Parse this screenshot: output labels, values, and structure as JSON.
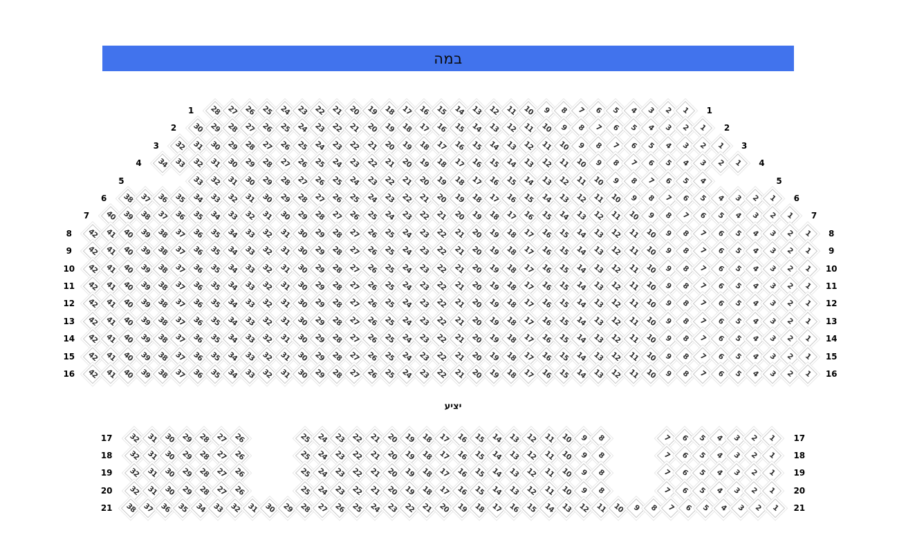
{
  "stage": {
    "label": "במה",
    "color": "#4173ed",
    "text_color": "#0a0a0a"
  },
  "balcony": {
    "label": "יציע"
  },
  "seat_style": {
    "fill": "#ffffff",
    "border_color": "#c7c7c7",
    "outer_ring_color": "#e8e8e8",
    "number_color": "#2e2e2e"
  },
  "sections": [
    {
      "name": "main-hall",
      "rows": [
        {
          "row": "1",
          "blocks": [
            [
              28,
              1
            ]
          ],
          "label_span": 28
        },
        {
          "row": "2",
          "blocks": [
            [
              30,
              1
            ]
          ],
          "label_span": 30
        },
        {
          "row": "3",
          "blocks": [
            [
              32,
              1
            ]
          ],
          "label_span": 32
        },
        {
          "row": "4",
          "blocks": [
            [
              34,
              1
            ]
          ],
          "label_span": 34
        },
        {
          "row": "5",
          "blocks": [
            [
              33,
              4
            ]
          ],
          "label_span": 36
        },
        {
          "row": "6",
          "blocks": [
            [
              38,
              1
            ]
          ],
          "label_span": 38
        },
        {
          "row": "7",
          "blocks": [
            [
              40,
              1
            ]
          ],
          "label_span": 40
        },
        {
          "row": "8",
          "blocks": [
            [
              42,
              1
            ]
          ],
          "label_span": 42
        },
        {
          "row": "9",
          "blocks": [
            [
              42,
              1
            ]
          ],
          "label_span": 42
        },
        {
          "row": "10",
          "blocks": [
            [
              42,
              1
            ]
          ],
          "label_span": 42
        },
        {
          "row": "11",
          "blocks": [
            [
              42,
              1
            ]
          ],
          "label_span": 42
        },
        {
          "row": "12",
          "blocks": [
            [
              42,
              1
            ]
          ],
          "label_span": 42
        },
        {
          "row": "13",
          "blocks": [
            [
              42,
              1
            ]
          ],
          "label_span": 42
        },
        {
          "row": "14",
          "blocks": [
            [
              42,
              1
            ]
          ],
          "label_span": 42
        },
        {
          "row": "15",
          "blocks": [
            [
              42,
              1
            ]
          ],
          "label_span": 42
        },
        {
          "row": "16",
          "blocks": [
            [
              42,
              1
            ]
          ],
          "label_span": 42
        }
      ]
    },
    {
      "name": "balcony",
      "rows": [
        {
          "row": "17",
          "blocks": [
            [
              32,
              26
            ],
            [
              25,
              8
            ],
            [
              7,
              1
            ]
          ],
          "label_span": 38
        },
        {
          "row": "18",
          "blocks": [
            [
              32,
              26
            ],
            [
              25,
              8
            ],
            [
              7,
              1
            ]
          ],
          "label_span": 38
        },
        {
          "row": "19",
          "blocks": [
            [
              32,
              26
            ],
            [
              25,
              8
            ],
            [
              7,
              1
            ]
          ],
          "label_span": 38
        },
        {
          "row": "20",
          "blocks": [
            [
              32,
              26
            ],
            [
              25,
              8
            ],
            [
              7,
              1
            ]
          ],
          "label_span": 38
        },
        {
          "row": "21",
          "blocks": [
            [
              38,
              1
            ]
          ],
          "label_span": 38
        }
      ]
    }
  ]
}
